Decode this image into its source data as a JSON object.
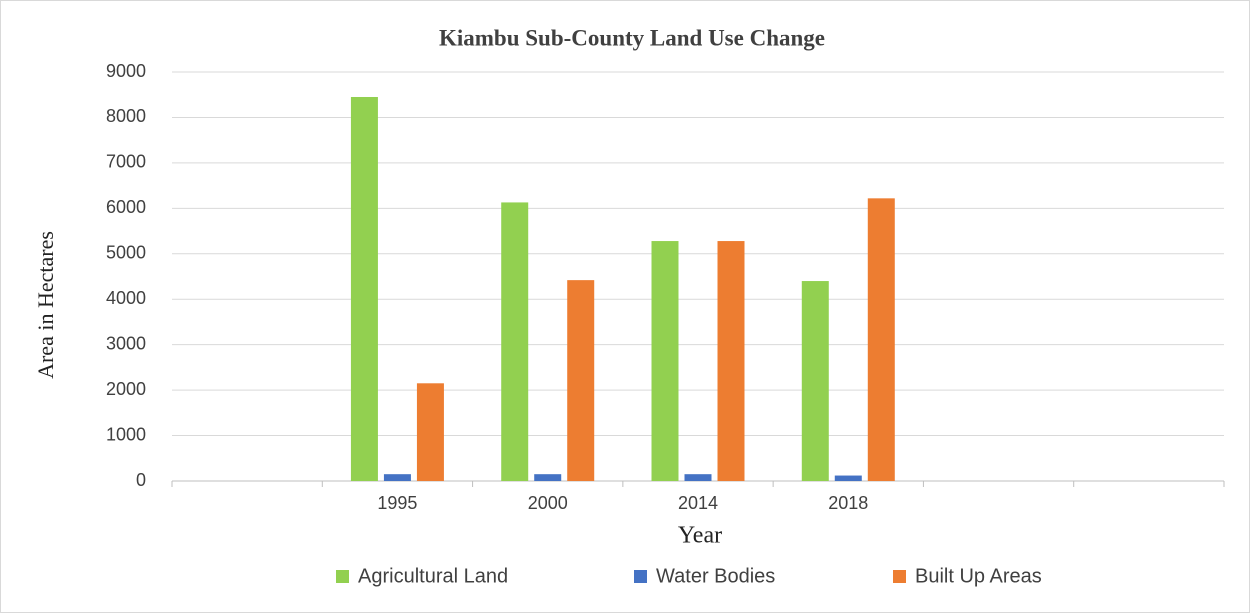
{
  "chart_data": {
    "type": "bar",
    "title": "Kiambu Sub-County Land Use Change",
    "x_label": "Year",
    "y_label": "Area in Hectares",
    "categories": [
      null,
      "1995",
      "2000",
      "2014",
      "2018",
      null,
      null
    ],
    "series": [
      {
        "name": "Agricultural Land",
        "color": "#92d050",
        "values": [
          null,
          8450,
          6130,
          5280,
          4400,
          null,
          null
        ]
      },
      {
        "name": "Water Bodies",
        "color": "#4472c4",
        "values": [
          null,
          150,
          150,
          150,
          120,
          null,
          null
        ]
      },
      {
        "name": "Built Up Areas",
        "color": "#ed7d31",
        "values": [
          null,
          2150,
          4420,
          5280,
          6220,
          null,
          null
        ]
      }
    ],
    "ylim": [
      0,
      9000
    ],
    "yticks": [
      0,
      1000,
      2000,
      3000,
      4000,
      5000,
      6000,
      7000,
      8000,
      9000
    ],
    "grid": true,
    "legend": "bottom"
  }
}
